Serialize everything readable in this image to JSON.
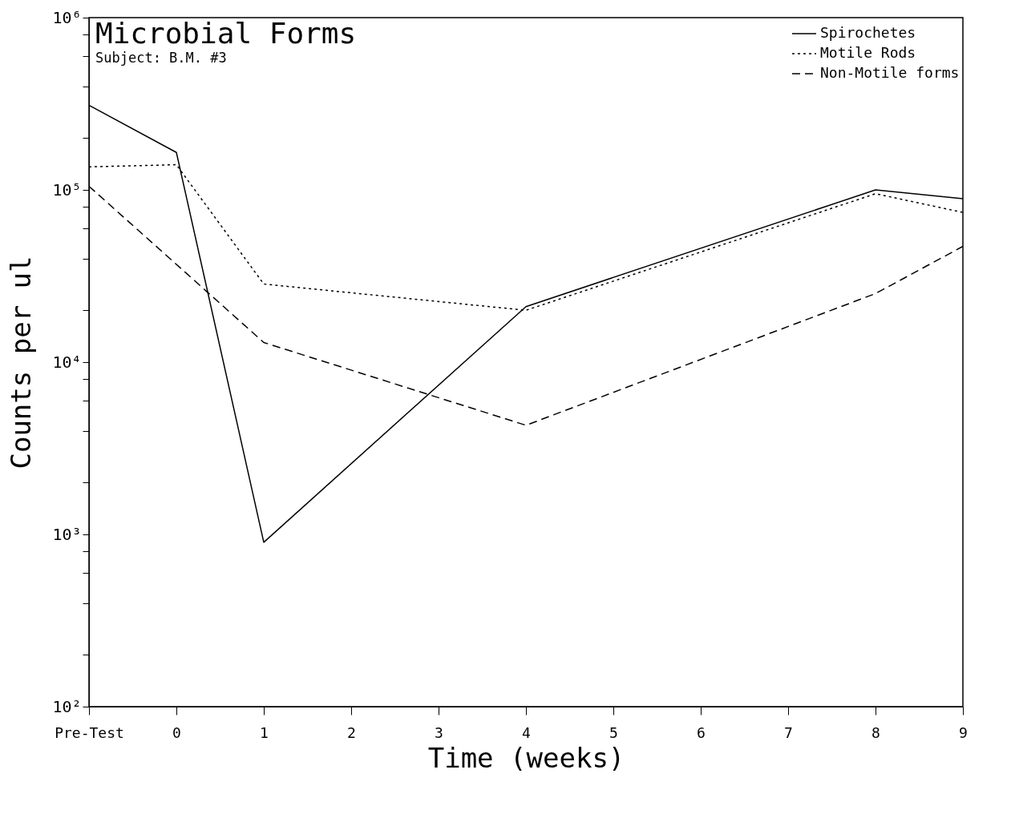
{
  "chart_data": {
    "type": "line",
    "title": "Microbial Forms",
    "subtitle": "Subject: B.M. #3",
    "xlabel": "Time (weeks)",
    "ylabel": "Counts per ul",
    "x": [
      -1,
      0,
      1,
      4,
      8,
      9
    ],
    "series": [
      {
        "name": "Spirochetes",
        "color": "#000000",
        "line_style": "solid",
        "values": [
          310000,
          165000,
          900,
          21000,
          100000,
          89000
        ]
      },
      {
        "name": "Motile Rods",
        "color": "#000000",
        "line_style": "dotted",
        "values": [
          136000,
          140000,
          28400,
          20000,
          95000,
          74000
        ]
      },
      {
        "name": "Non-Motile forms",
        "color": "#000000",
        "line_style": "dashed",
        "x": [
          -1,
          1,
          4,
          8,
          9
        ],
        "values": [
          105000,
          13000,
          4300,
          25000,
          47000
        ]
      }
    ],
    "xlim": [
      -1,
      9
    ],
    "xticks": [
      {
        "value": -1,
        "label": "Pre-Test"
      },
      0,
      1,
      2,
      3,
      4,
      5,
      6,
      7,
      8,
      9
    ],
    "ylim": [
      100,
      1000000
    ],
    "log": "y",
    "yticks": [
      {
        "value": 100,
        "label": "10²"
      },
      {
        "value": 200,
        "label": null
      },
      {
        "value": 400,
        "label": null
      },
      {
        "value": 600,
        "label": null
      },
      {
        "value": 800,
        "label": null
      },
      {
        "value": 1000,
        "label": "10³"
      },
      {
        "value": 2000,
        "label": null
      },
      {
        "value": 4000,
        "label": null
      },
      {
        "value": 6000,
        "label": null
      },
      {
        "value": 8000,
        "label": null
      },
      {
        "value": 10000,
        "label": "10⁴"
      },
      {
        "value": 20000,
        "label": null
      },
      {
        "value": 40000,
        "label": null
      },
      {
        "value": 60000,
        "label": null
      },
      {
        "value": 80000,
        "label": null
      },
      {
        "value": 100000,
        "label": "10⁵"
      },
      {
        "value": 200000,
        "label": null
      },
      {
        "value": 400000,
        "label": null
      },
      {
        "value": 600000,
        "label": null
      },
      {
        "value": 800000,
        "label": null
      },
      {
        "value": 1000000,
        "label": "10⁶"
      }
    ],
    "grid": false,
    "legend": "top right"
  }
}
